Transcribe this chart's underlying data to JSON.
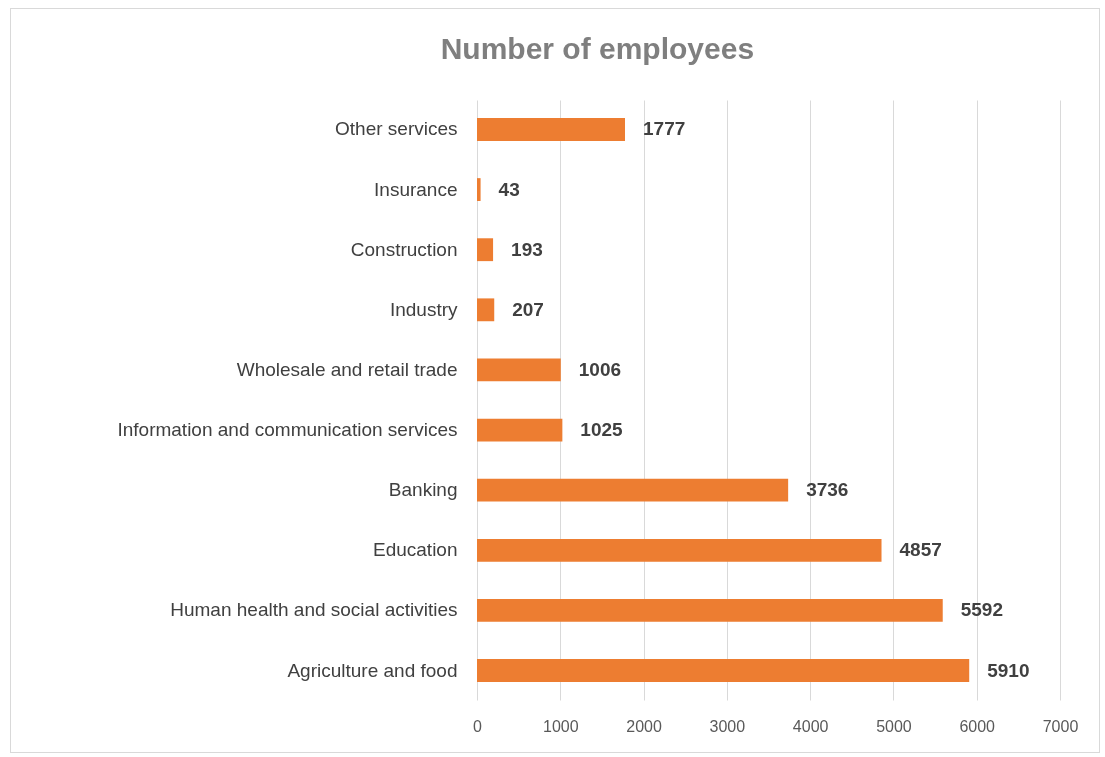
{
  "chart_data": {
    "type": "bar",
    "title": "Number of employees",
    "orientation": "horizontal",
    "categories": [
      "Other services",
      "Insurance",
      "Construction",
      "Industry",
      "Wholesale and retail trade",
      "Information and communication services",
      "Banking",
      "Education",
      "Human health and social activities",
      "Agriculture and food"
    ],
    "values": [
      1777,
      43,
      193,
      207,
      1006,
      1025,
      3736,
      4857,
      5592,
      5910
    ],
    "color": "#ed7d31",
    "xlim": [
      0,
      7000
    ],
    "xticks": [
      0,
      1000,
      2000,
      3000,
      4000,
      5000,
      6000,
      7000
    ],
    "grid": "x",
    "data_labels": true
  }
}
